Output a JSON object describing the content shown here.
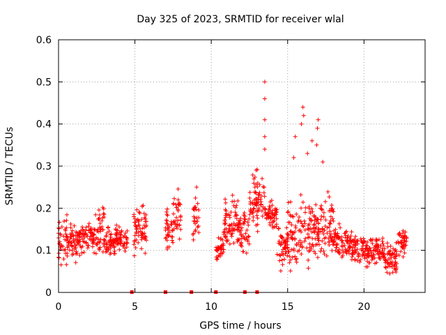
{
  "chart_data": {
    "type": "scatter",
    "title": "Day 325 of 2023, SRMTID for receiver wlal",
    "xlabel": "GPS time / hours",
    "ylabel": "SRMTID / TECUs",
    "xlim": [
      0,
      24
    ],
    "ylim": [
      0,
      0.6
    ],
    "xticks": [
      0,
      5,
      10,
      15,
      20
    ],
    "yticks": [
      0,
      0.1,
      0.2,
      0.3,
      0.4,
      0.5,
      0.6
    ],
    "xtick_labels": [
      "0",
      "5",
      "10",
      "15",
      "20"
    ],
    "ytick_labels": [
      "0",
      "0.1",
      "0.2",
      "0.3",
      "0.4",
      "0.5",
      "0.6"
    ],
    "grid": true,
    "marker": "+",
    "color": "#ff0000",
    "zero_markers_x": [
      4.8,
      7.0,
      8.7,
      10.3,
      12.2,
      13.0
    ],
    "segments": [
      {
        "x": [
          0.0,
          0.6
        ],
        "base": 0.12,
        "spread": 0.05,
        "max": 0.2
      },
      {
        "x": [
          0.6,
          1.2
        ],
        "base": 0.12,
        "spread": 0.04,
        "max": 0.19
      },
      {
        "x": [
          1.2,
          2.4
        ],
        "base": 0.13,
        "spread": 0.03,
        "max": 0.17
      },
      {
        "x": [
          2.4,
          3.0
        ],
        "base": 0.15,
        "spread": 0.05,
        "max": 0.22
      },
      {
        "x": [
          3.0,
          3.7
        ],
        "base": 0.12,
        "spread": 0.03,
        "max": 0.18
      },
      {
        "x": [
          3.7,
          4.5
        ],
        "base": 0.13,
        "spread": 0.03,
        "max": 0.16
      },
      {
        "x": [
          4.9,
          5.8
        ],
        "base": 0.15,
        "spread": 0.05,
        "max": 0.24
      },
      {
        "x": [
          7.0,
          7.5
        ],
        "base": 0.15,
        "spread": 0.04,
        "max": 0.2
      },
      {
        "x": [
          7.5,
          8.0
        ],
        "base": 0.18,
        "spread": 0.06,
        "max": 0.3
      },
      {
        "x": [
          8.8,
          9.2
        ],
        "base": 0.18,
        "spread": 0.06,
        "max": 0.27
      },
      {
        "x": [
          10.3,
          10.8
        ],
        "base": 0.1,
        "spread": 0.03,
        "max": 0.13
      },
      {
        "x": [
          10.8,
          11.7
        ],
        "base": 0.17,
        "spread": 0.05,
        "max": 0.24
      },
      {
        "x": [
          11.7,
          12.5
        ],
        "base": 0.15,
        "spread": 0.05,
        "max": 0.23
      },
      {
        "x": [
          12.5,
          13.5
        ],
        "base": 0.22,
        "spread": 0.06,
        "max": 0.31
      },
      {
        "x": [
          13.5,
          14.3
        ],
        "base": 0.18,
        "spread": 0.03,
        "max": 0.23
      },
      {
        "x": [
          14.3,
          15.0
        ],
        "base": 0.11,
        "spread": 0.04,
        "max": 0.17
      },
      {
        "x": [
          15.0,
          16.0
        ],
        "base": 0.13,
        "spread": 0.07,
        "max": 0.37
      },
      {
        "x": [
          16.0,
          17.0
        ],
        "base": 0.15,
        "spread": 0.07,
        "max": 0.44
      },
      {
        "x": [
          17.0,
          18.0
        ],
        "base": 0.16,
        "spread": 0.06,
        "max": 0.41
      },
      {
        "x": [
          18.0,
          19.2
        ],
        "base": 0.12,
        "spread": 0.03,
        "max": 0.17
      },
      {
        "x": [
          19.2,
          20.4
        ],
        "base": 0.1,
        "spread": 0.03,
        "max": 0.15
      },
      {
        "x": [
          20.4,
          21.3
        ],
        "base": 0.1,
        "spread": 0.03,
        "max": 0.16
      },
      {
        "x": [
          21.3,
          22.2
        ],
        "base": 0.08,
        "spread": 0.03,
        "max": 0.12
      },
      {
        "x": [
          22.2,
          22.8
        ],
        "base": 0.12,
        "spread": 0.03,
        "max": 0.17
      }
    ],
    "spikes": [
      {
        "x": 13.5,
        "y": 0.5
      },
      {
        "x": 13.5,
        "y": 0.46
      },
      {
        "x": 13.5,
        "y": 0.41
      },
      {
        "x": 13.5,
        "y": 0.37
      },
      {
        "x": 13.5,
        "y": 0.34
      },
      {
        "x": 16.0,
        "y": 0.44
      },
      {
        "x": 16.05,
        "y": 0.42
      },
      {
        "x": 15.9,
        "y": 0.4
      },
      {
        "x": 17.0,
        "y": 0.41
      },
      {
        "x": 16.95,
        "y": 0.39
      },
      {
        "x": 16.9,
        "y": 0.35
      },
      {
        "x": 15.5,
        "y": 0.37
      },
      {
        "x": 15.4,
        "y": 0.32
      },
      {
        "x": 16.6,
        "y": 0.36
      },
      {
        "x": 16.3,
        "y": 0.33
      },
      {
        "x": 17.3,
        "y": 0.31
      }
    ]
  }
}
